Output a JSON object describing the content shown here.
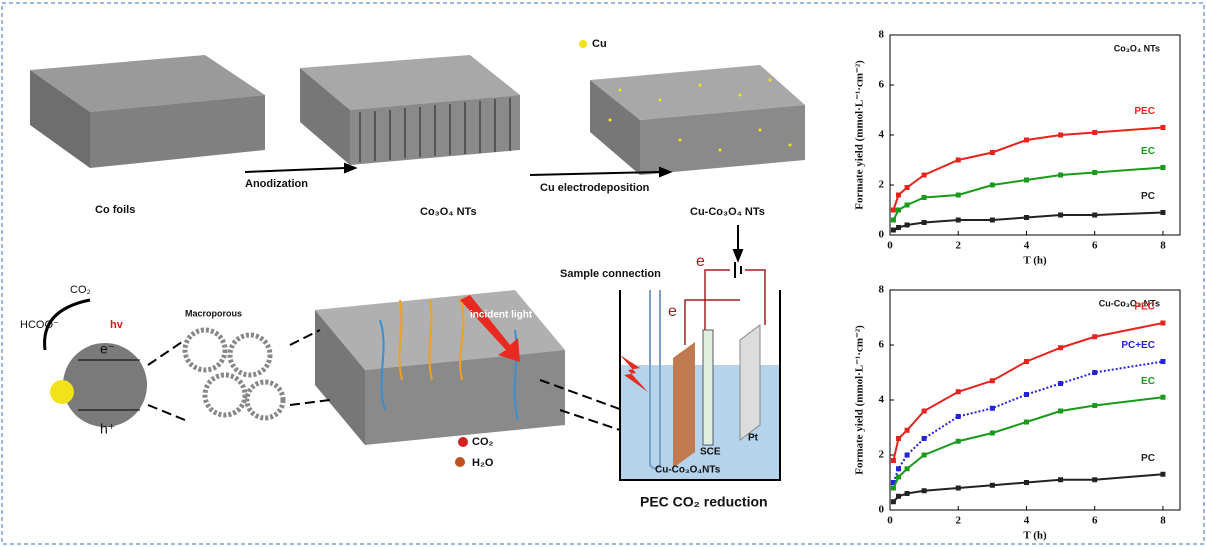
{
  "diagram": {
    "co_foils": "Co foils",
    "anodization": "Anodization",
    "co3o4_nts": "Co₃O₄ NTs",
    "cu_electrodeposition": "Cu electrodeposition",
    "cu_legend": "Cu",
    "cu_co3o4_nts": "Cu-Co₃O₄ NTs",
    "sample_connection": "Sample connection",
    "electron_top": "e",
    "electron_side": "e",
    "incident_light": "incident light",
    "macroporous": "Macroporous",
    "co2_in": "CO₂",
    "hcoo_out": "HCOO⁻",
    "hv": "hv",
    "e_minus": "e⁻",
    "h_plus": "h⁺",
    "co2_legend": "CO₂",
    "h2o_legend": "H₂O",
    "sce": "SCE",
    "pt": "Pt",
    "electrode_label": "Cu-Co₃O₄NTs",
    "caption": "PEC CO₂ reduction"
  },
  "chart_data": [
    {
      "type": "line",
      "title": "Co₃O₄ NTs",
      "x_label": "T (h)",
      "y_label": "Formate yield (mmol·L⁻¹·cm⁻²)",
      "x": [
        0.1,
        0.25,
        0.5,
        1,
        2,
        3,
        4,
        5,
        6,
        8
      ],
      "series": [
        {
          "name": "PEC",
          "color": "#e8221c",
          "line_style": "solid",
          "values": [
            1.0,
            1.6,
            1.9,
            2.4,
            3.0,
            3.3,
            3.8,
            4.0,
            4.1,
            4.3
          ]
        },
        {
          "name": "EC",
          "color": "#1a9a1a",
          "line_style": "solid",
          "values": [
            0.6,
            1.0,
            1.2,
            1.5,
            1.6,
            2.0,
            2.2,
            2.4,
            2.5,
            2.7
          ]
        },
        {
          "name": "PC",
          "color": "#222222",
          "line_style": "solid",
          "values": [
            0.2,
            0.3,
            0.4,
            0.5,
            0.6,
            0.6,
            0.7,
            0.8,
            0.8,
            0.9
          ]
        }
      ],
      "xlim": [
        0,
        8.5
      ],
      "xticks": [
        0,
        2,
        4,
        6,
        8
      ],
      "ylim": [
        0,
        8
      ],
      "yticks": [
        0,
        2,
        4,
        6,
        8
      ]
    },
    {
      "type": "line",
      "title": "Cu-Co₃O₄ NTs",
      "x_label": "T (h)",
      "y_label": "Formate yield (mmol·L⁻¹·cm⁻²)",
      "x": [
        0.1,
        0.25,
        0.5,
        1,
        2,
        3,
        4,
        5,
        6,
        8
      ],
      "series": [
        {
          "name": "PEC",
          "color": "#e8221c",
          "line_style": "solid",
          "values": [
            1.8,
            2.6,
            2.9,
            3.6,
            4.3,
            4.7,
            5.4,
            5.9,
            6.3,
            6.8
          ]
        },
        {
          "name": "PC+EC",
          "color": "#2222dd",
          "line_style": "dotted",
          "values": [
            1.0,
            1.5,
            2.0,
            2.6,
            3.4,
            3.7,
            4.2,
            4.6,
            5.0,
            5.4
          ]
        },
        {
          "name": "EC",
          "color": "#1a9a1a",
          "line_style": "solid",
          "values": [
            0.8,
            1.2,
            1.5,
            2.0,
            2.5,
            2.8,
            3.2,
            3.6,
            3.8,
            4.1
          ]
        },
        {
          "name": "PC",
          "color": "#222222",
          "line_style": "solid",
          "values": [
            0.3,
            0.5,
            0.6,
            0.7,
            0.8,
            0.9,
            1.0,
            1.1,
            1.1,
            1.3
          ]
        }
      ],
      "xlim": [
        0,
        8.5
      ],
      "xticks": [
        0,
        2,
        4,
        6,
        8
      ],
      "ylim": [
        0,
        8
      ],
      "yticks": [
        0,
        2,
        4,
        6,
        8
      ]
    }
  ]
}
